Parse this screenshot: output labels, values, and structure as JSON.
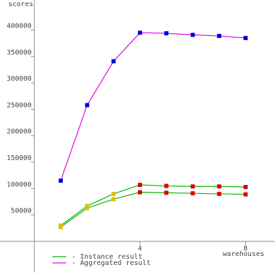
{
  "chart_data": {
    "type": "line",
    "y_label": "scores",
    "x_label": "warehouses",
    "x": [
      1,
      2,
      3,
      4,
      5,
      6,
      7,
      8
    ],
    "xlim": [
      -1.3,
      9.1
    ],
    "xticks": [
      4,
      8
    ],
    "ylim": [
      -59000,
      457000
    ],
    "yticks": [
      50000,
      100000,
      150000,
      200000,
      250000,
      300000,
      350000,
      400000
    ],
    "series": [
      {
        "name": "- Instance result",
        "color": "#00b000",
        "marker_colors": [
          "#e0c000",
          "#e0c000",
          "#e0c000",
          "#e00000",
          "#e00000",
          "#e00000",
          "#e00000",
          "#e00000"
        ],
        "values": [
          [
            30000,
            67000,
            90000,
            107000,
            105000,
            104000,
            104000,
            103000
          ],
          [
            27000,
            63000,
            80000,
            93000,
            92000,
            91000,
            90000,
            89000
          ]
        ]
      },
      {
        "name": "- Aggregated result",
        "color": "#e000e0",
        "marker_colors": [
          "#0000e0",
          "#0000e0",
          "#0000e0",
          "#0000e0",
          "#0000e0",
          "#0000e0",
          "#0000e0",
          "#0000e0"
        ],
        "values": [
          [
            115000,
            258000,
            341000,
            395000,
            394000,
            391000,
            389000,
            385000
          ]
        ]
      }
    ]
  }
}
